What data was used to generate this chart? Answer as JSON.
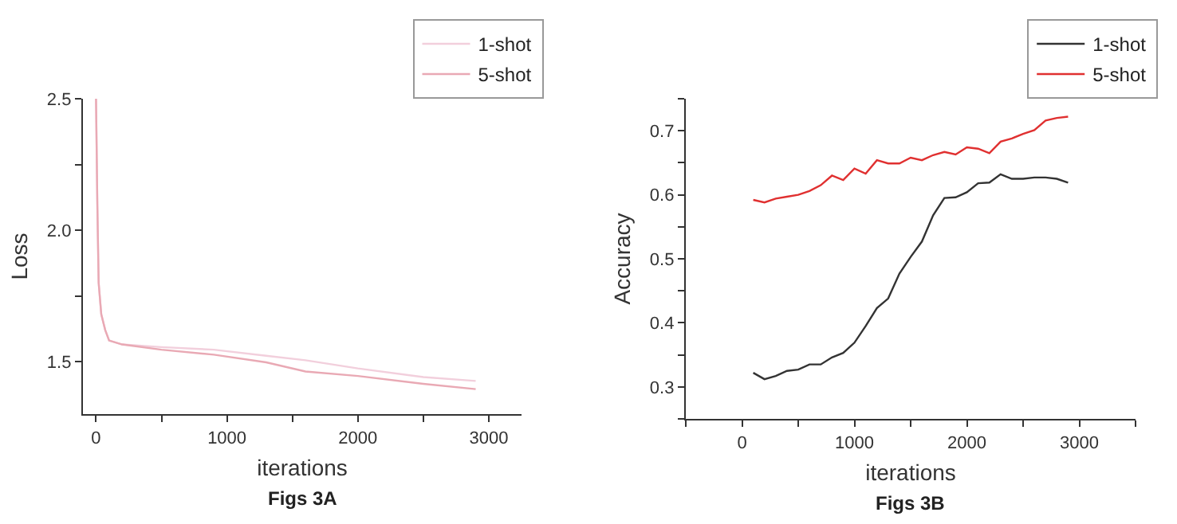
{
  "chart_data": [
    {
      "type": "line",
      "xlabel": "iterations",
      "ylabel": "Loss",
      "annotations": [
        "Figs 3A"
      ],
      "legend": "top right",
      "grid": false,
      "marker": "none",
      "line_style": "solid",
      "x": [
        0,
        10,
        20,
        40,
        70,
        100,
        200,
        500,
        900,
        1300,
        1600,
        2000,
        2500,
        2900
      ],
      "series": [
        {
          "name": "1-shot",
          "color": "#f2cfdc",
          "values": [
            2.5,
            2.1,
            1.8,
            1.68,
            1.62,
            1.58,
            1.565,
            1.555,
            1.545,
            1.522,
            1.505,
            1.474,
            1.441,
            1.426
          ]
        },
        {
          "name": "5-shot",
          "color": "#e9a9b4",
          "values": [
            2.5,
            2.1,
            1.8,
            1.68,
            1.62,
            1.58,
            1.565,
            1.545,
            1.526,
            1.497,
            1.462,
            1.445,
            1.415,
            1.395
          ]
        }
      ],
      "xlim": [
        -100,
        3250
      ],
      "xticks": [
        0,
        {
          "value": 500,
          "label": null
        },
        1000,
        {
          "value": 1500,
          "label": null
        },
        2000,
        {
          "value": 2500,
          "label": null
        },
        3000
      ],
      "ylim": [
        1.3,
        2.5
      ],
      "yticks": [
        {
          "value": 1.5,
          "label": "1.5"
        },
        {
          "value": 1.75,
          "label": null
        },
        {
          "value": 2,
          "label": "2.0"
        },
        {
          "value": 2.25,
          "label": null
        },
        {
          "value": 2.5,
          "label": "2.5"
        }
      ]
    },
    {
      "type": "line",
      "xlabel": "iterations",
      "ylabel": "Accuracy",
      "annotations": [
        "Figs 3B"
      ],
      "legend": "top right",
      "grid": false,
      "marker": "none",
      "line_style": "solid",
      "x": [
        100,
        200,
        300,
        400,
        500,
        600,
        700,
        800,
        900,
        1000,
        1100,
        1200,
        1300,
        1400,
        1500,
        1600,
        1700,
        1800,
        1900,
        2000,
        2100,
        2200,
        2300,
        2400,
        2500,
        2600,
        2700,
        2800,
        2900
      ],
      "series": [
        {
          "name": "1-shot",
          "color": "#333333",
          "values": [
            0.322,
            0.312,
            0.317,
            0.325,
            0.327,
            0.335,
            0.335,
            0.346,
            0.353,
            0.369,
            0.395,
            0.423,
            0.438,
            0.477,
            0.503,
            0.527,
            0.568,
            0.595,
            0.596,
            0.604,
            0.618,
            0.619,
            0.632,
            0.625,
            0.625,
            0.627,
            0.627,
            0.625,
            0.619
          ]
        },
        {
          "name": "5-shot",
          "color": "#e03030",
          "values": [
            0.592,
            0.588,
            0.594,
            0.597,
            0.6,
            0.606,
            0.615,
            0.63,
            0.623,
            0.641,
            0.633,
            0.654,
            0.649,
            0.649,
            0.658,
            0.654,
            0.662,
            0.667,
            0.663,
            0.674,
            0.672,
            0.665,
            0.683,
            0.688,
            0.695,
            0.701,
            0.716,
            0.72,
            0.722
          ]
        }
      ],
      "xlim": [
        -500,
        3500
      ],
      "xticks": [
        {
          "value": -500,
          "label": null
        },
        0,
        {
          "value": 500,
          "label": null
        },
        1000,
        {
          "value": 1500,
          "label": null
        },
        2000,
        {
          "value": 2500,
          "label": null
        },
        3000,
        {
          "value": 3500,
          "label": null
        }
      ],
      "ylim": [
        0.25,
        0.75
      ],
      "yticks": [
        {
          "value": 0.25,
          "label": null
        },
        0.3,
        {
          "value": 0.35,
          "label": null
        },
        0.4,
        {
          "value": 0.45,
          "label": null
        },
        0.5,
        {
          "value": 0.55,
          "label": null
        },
        0.6,
        {
          "value": 0.65,
          "label": null
        },
        0.7,
        {
          "value": 0.75,
          "label": null
        }
      ]
    }
  ]
}
